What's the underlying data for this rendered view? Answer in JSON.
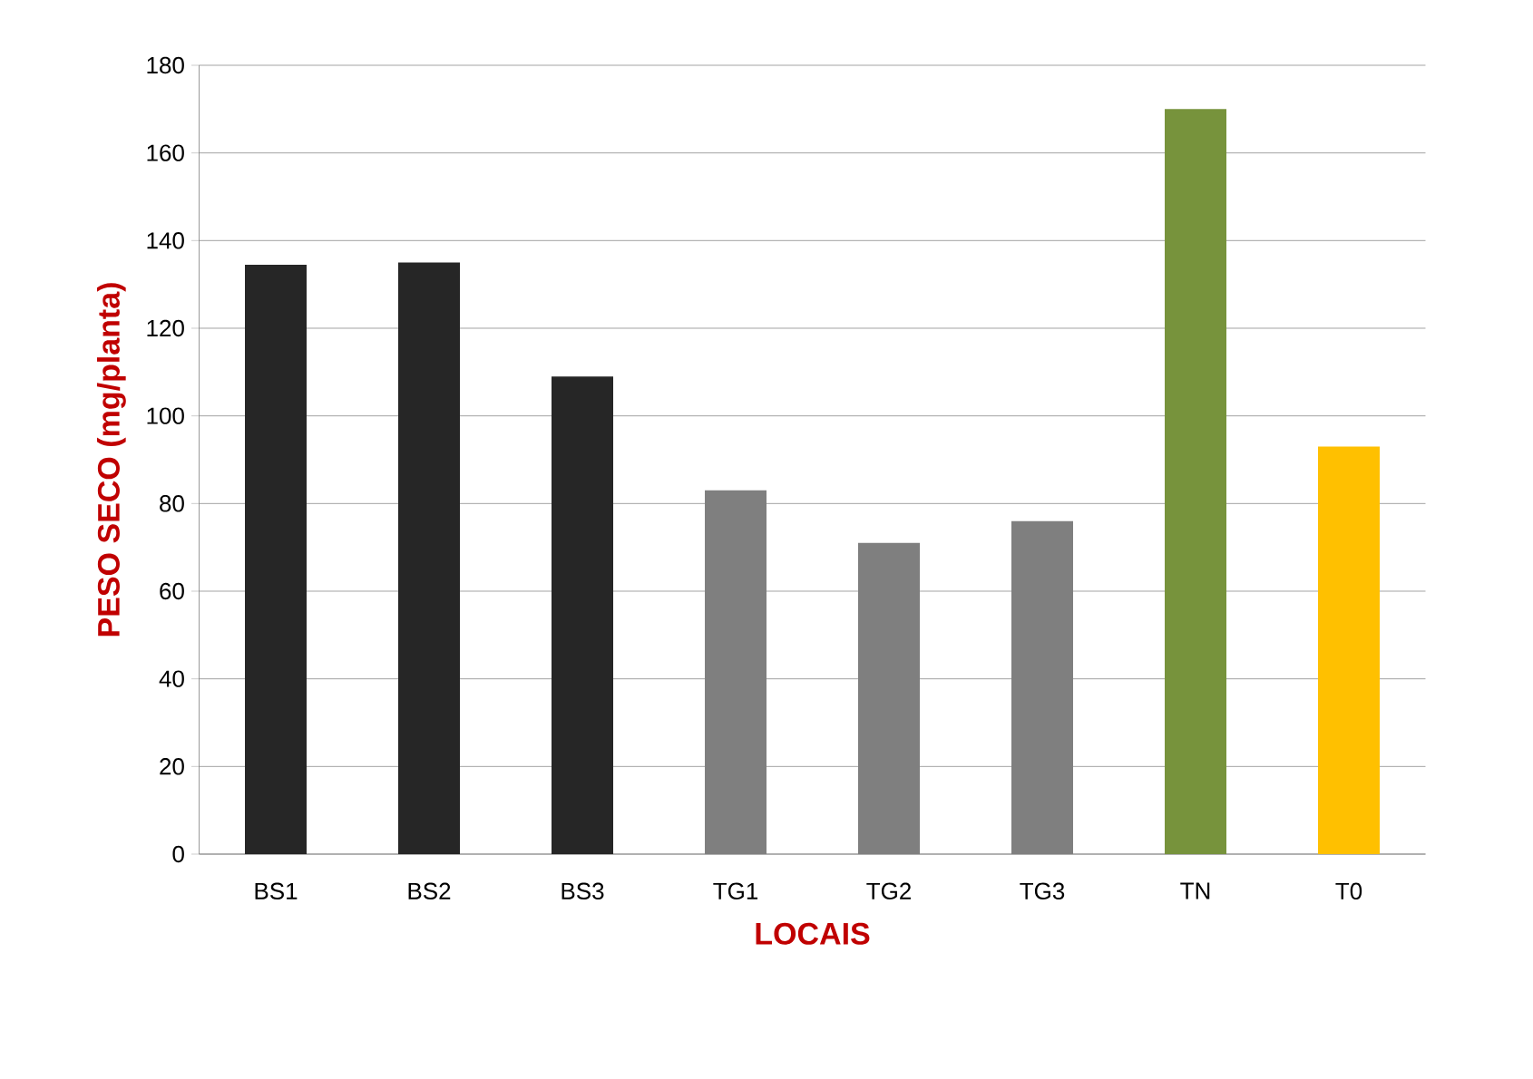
{
  "chart_data": {
    "type": "bar",
    "xlabel": "LOCAIS",
    "ylabel": "PESO SECO  (mg/planta)",
    "categories": [
      "BS1",
      "BS2",
      "BS3",
      "TG1",
      "TG2",
      "TG3",
      "TN",
      "T0"
    ],
    "values": [
      134.5,
      135,
      109,
      83,
      71,
      76,
      170,
      93
    ],
    "colors": [
      "#262626",
      "#262626",
      "#262626",
      "#7f7f7f",
      "#7f7f7f",
      "#7f7f7f",
      "#77933c",
      "#ffc000"
    ],
    "ylim": [
      0,
      180
    ],
    "yticks": [
      0,
      20,
      40,
      60,
      80,
      100,
      120,
      140,
      160,
      180
    ],
    "grid": "y"
  }
}
